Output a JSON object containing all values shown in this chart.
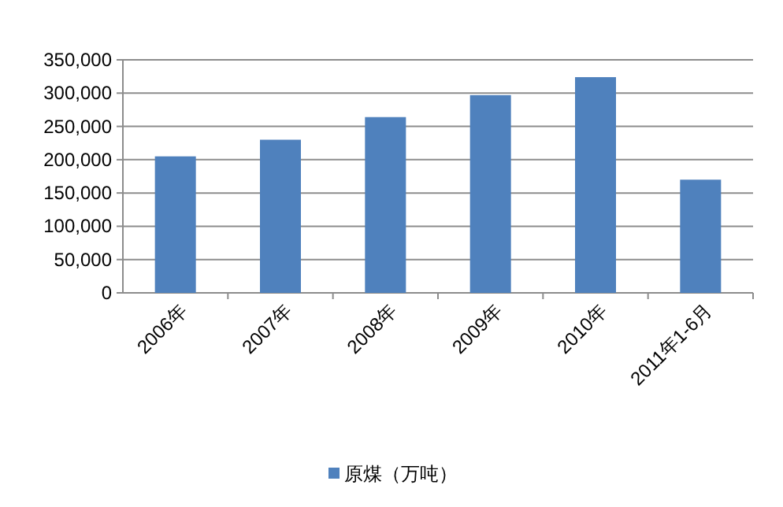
{
  "chart_data": {
    "type": "bar",
    "categories": [
      "2006年",
      "2007年",
      "2008年",
      "2009年",
      "2010年",
      "2011年1-6月"
    ],
    "series": [
      {
        "name": "原煤（万吨）",
        "color": "#4f81bd",
        "values": [
          205000,
          230000,
          264000,
          297000,
          324000,
          170000
        ]
      }
    ],
    "ylim": [
      0,
      350000
    ],
    "yticks": [
      {
        "value": 0,
        "label": "0"
      },
      {
        "value": 50000,
        "label": "50,000"
      },
      {
        "value": 100000,
        "label": "100,000"
      },
      {
        "value": 150000,
        "label": "150,000"
      },
      {
        "value": 200000,
        "label": "200,000"
      },
      {
        "value": 250000,
        "label": "250,000"
      },
      {
        "value": 300000,
        "label": "300,000"
      },
      {
        "value": 350000,
        "label": "350,000"
      }
    ],
    "grid": "y",
    "legend": "bottom"
  }
}
